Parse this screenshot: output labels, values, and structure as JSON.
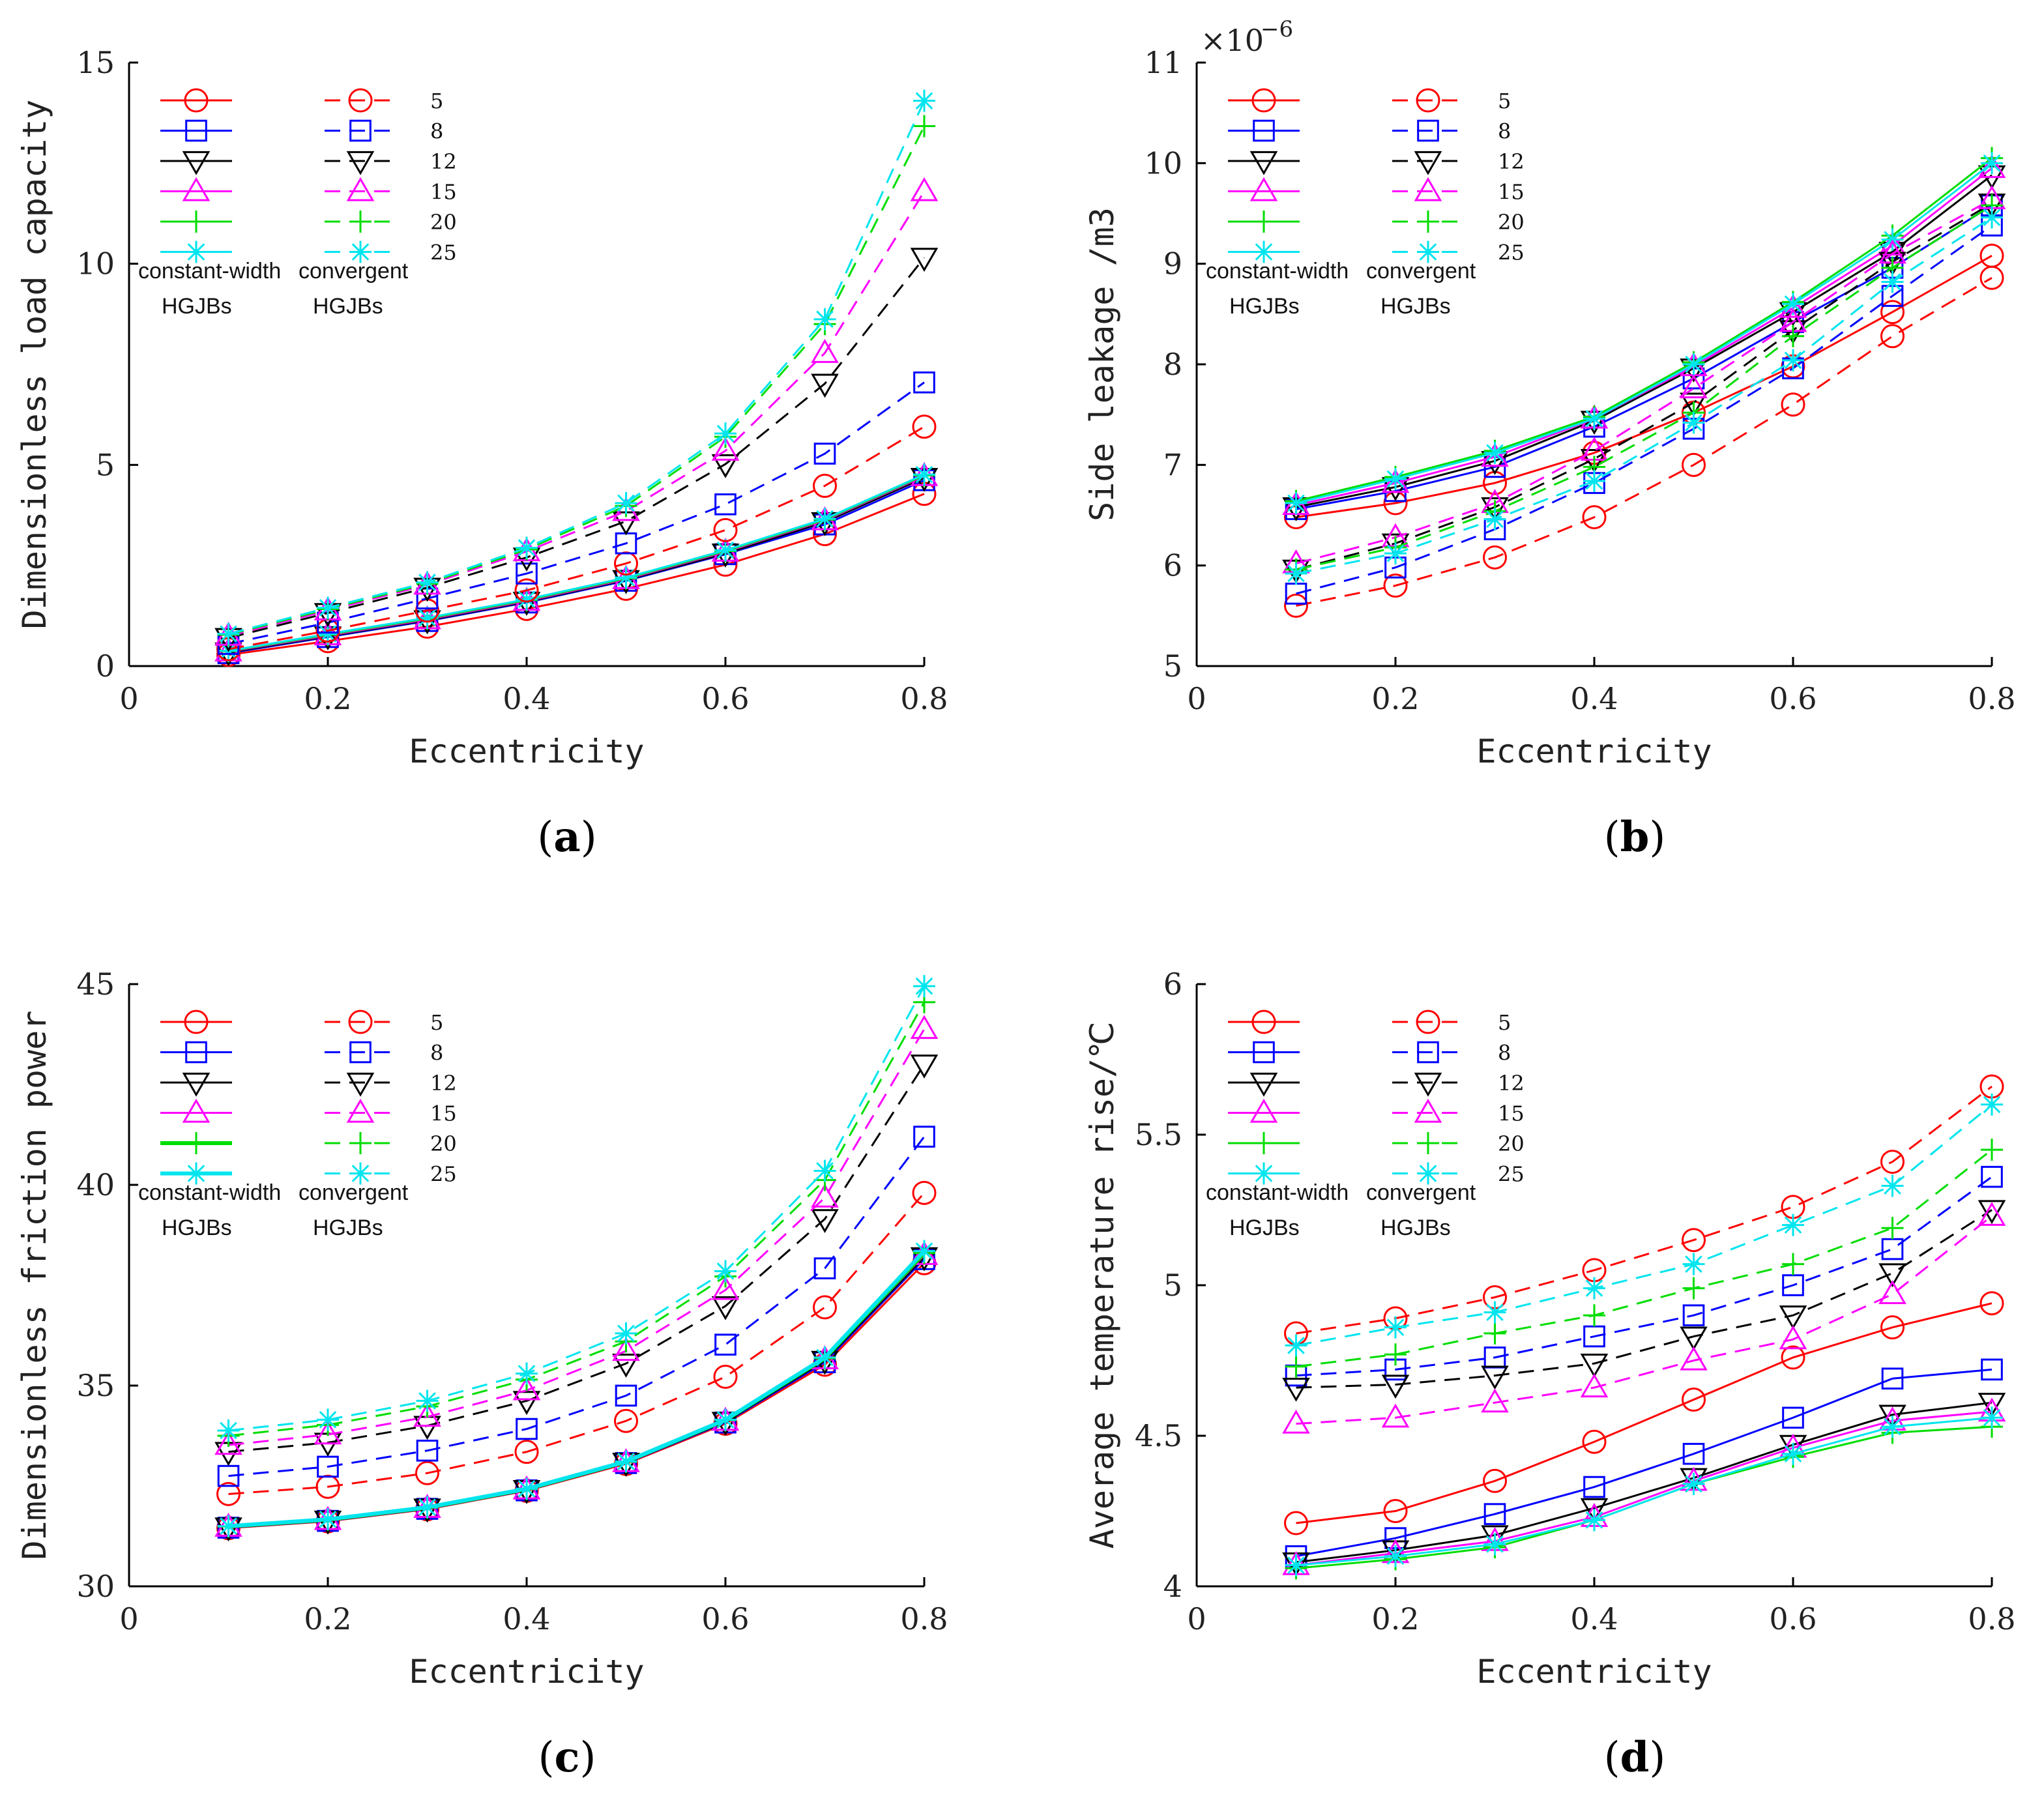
{
  "series_colors": {
    "5": "#ff0000",
    "8": "#0000ff",
    "12": "#000000",
    "15": "#ff00ff",
    "20": "#00dd00",
    "25": "#00e5ee"
  },
  "series_markers": {
    "5": "circle",
    "8": "square",
    "12": "triangle-down",
    "15": "triangle-up",
    "20": "plus",
    "25": "asterisk"
  },
  "legend": {
    "labels": [
      "5",
      "8",
      "12",
      "15",
      "20",
      "25"
    ],
    "solid_label_line1": "constant-width",
    "solid_label_line2": "HGJBs",
    "dashed_label_line1": "convergent",
    "dashed_label_line2": "HGJBs"
  },
  "panels": [
    {
      "letter": "a",
      "paren_open": "(",
      "paren_close": ")"
    },
    {
      "letter": "b",
      "paren_open": "(",
      "paren_close": ")"
    },
    {
      "letter": "c",
      "paren_open": "(",
      "paren_close": ")"
    },
    {
      "letter": "d",
      "paren_open": "(",
      "paren_close": ")"
    }
  ],
  "chart_data": [
    {
      "type": "line",
      "xlabel": "Eccentricity",
      "ylabel": "Dimensionless load capacity",
      "xlim": [
        0,
        0.8
      ],
      "ylim": [
        0,
        15
      ],
      "xticks": [
        0,
        0.2,
        0.4,
        0.6,
        0.8
      ],
      "xtick_labels": [
        "0",
        "0.2",
        "0.4",
        "0.6",
        "0.8"
      ],
      "yticks": [
        0,
        5,
        10,
        15
      ],
      "ytick_labels": [
        "0",
        "5",
        "10",
        "15"
      ],
      "x": [
        0.1,
        0.2,
        0.3,
        0.4,
        0.5,
        0.6,
        0.7,
        0.8
      ],
      "series": [
        {
          "name": "5",
          "style": "solid",
          "values": [
            0.28,
            0.62,
            0.98,
            1.42,
            1.92,
            2.52,
            3.28,
            4.28
          ]
        },
        {
          "name": "8",
          "style": "solid",
          "values": [
            0.32,
            0.72,
            1.12,
            1.58,
            2.12,
            2.78,
            3.52,
            4.62
          ]
        },
        {
          "name": "12",
          "style": "solid",
          "values": [
            0.34,
            0.74,
            1.14,
            1.6,
            2.14,
            2.8,
            3.58,
            4.68
          ]
        },
        {
          "name": "15",
          "style": "solid",
          "values": [
            0.36,
            0.76,
            1.16,
            1.62,
            2.16,
            2.84,
            3.62,
            4.72
          ]
        },
        {
          "name": "20",
          "style": "solid",
          "values": [
            0.37,
            0.78,
            1.18,
            1.64,
            2.18,
            2.86,
            3.64,
            4.74
          ]
        },
        {
          "name": "25",
          "style": "solid",
          "values": [
            0.38,
            0.8,
            1.2,
            1.66,
            2.2,
            2.88,
            3.66,
            4.76
          ]
        },
        {
          "name": "5",
          "style": "dashed",
          "values": [
            0.42,
            0.88,
            1.38,
            1.88,
            2.55,
            3.38,
            4.48,
            5.95
          ]
        },
        {
          "name": "8",
          "style": "dashed",
          "values": [
            0.55,
            1.08,
            1.68,
            2.3,
            3.05,
            4.02,
            5.28,
            7.05
          ]
        },
        {
          "name": "12",
          "style": "dashed",
          "values": [
            0.7,
            1.32,
            1.95,
            2.7,
            3.6,
            5.02,
            7.02,
            10.15
          ]
        },
        {
          "name": "15",
          "style": "dashed",
          "values": [
            0.75,
            1.38,
            2.02,
            2.85,
            3.85,
            5.35,
            7.78,
            11.8
          ]
        },
        {
          "name": "20",
          "style": "dashed",
          "values": [
            0.78,
            1.42,
            2.05,
            2.9,
            3.98,
            5.7,
            8.5,
            13.42
          ]
        },
        {
          "name": "25",
          "style": "dashed",
          "values": [
            0.8,
            1.45,
            2.08,
            2.94,
            4.05,
            5.78,
            8.62,
            14.05
          ]
        }
      ]
    },
    {
      "type": "line",
      "xlabel": "Eccentricity",
      "ylabel": "Side leakage /m3",
      "axis_multiplier": "×10",
      "axis_multiplier_exp": "−6",
      "xlim": [
        0,
        0.8
      ],
      "ylim": [
        5,
        11
      ],
      "xticks": [
        0,
        0.2,
        0.4,
        0.6,
        0.8
      ],
      "xtick_labels": [
        "0",
        "0.2",
        "0.4",
        "0.6",
        "0.8"
      ],
      "yticks": [
        5,
        6,
        7,
        8,
        9,
        10,
        11
      ],
      "ytick_labels": [
        "5",
        "6",
        "7",
        "8",
        "9",
        "10",
        "11"
      ],
      "x": [
        0.1,
        0.2,
        0.3,
        0.4,
        0.5,
        0.6,
        0.7,
        0.8
      ],
      "series": [
        {
          "name": "5",
          "style": "solid",
          "values": [
            6.48,
            6.62,
            6.82,
            7.12,
            7.52,
            7.98,
            8.52,
            9.08
          ]
        },
        {
          "name": "8",
          "style": "solid",
          "values": [
            6.56,
            6.74,
            6.98,
            7.38,
            7.86,
            8.42,
            8.96,
            9.58
          ]
        },
        {
          "name": "12",
          "style": "solid",
          "values": [
            6.58,
            6.78,
            7.04,
            7.44,
            7.96,
            8.52,
            9.12,
            9.88
          ]
        },
        {
          "name": "15",
          "style": "solid",
          "values": [
            6.6,
            6.82,
            7.08,
            7.46,
            7.98,
            8.56,
            9.18,
            9.95
          ]
        },
        {
          "name": "20",
          "style": "solid",
          "values": [
            6.64,
            6.88,
            7.14,
            7.48,
            8.02,
            8.62,
            9.28,
            10.05
          ]
        },
        {
          "name": "25",
          "style": "solid",
          "values": [
            6.62,
            6.86,
            7.12,
            7.46,
            8.0,
            8.6,
            9.24,
            10.0
          ]
        },
        {
          "name": "5",
          "style": "dashed",
          "values": [
            5.6,
            5.8,
            6.08,
            6.48,
            7.0,
            7.6,
            8.28,
            8.86
          ]
        },
        {
          "name": "8",
          "style": "dashed",
          "values": [
            5.72,
            5.98,
            6.36,
            6.82,
            7.36,
            7.96,
            8.68,
            9.38
          ]
        },
        {
          "name": "12",
          "style": "dashed",
          "values": [
            5.96,
            6.22,
            6.58,
            7.06,
            7.62,
            8.34,
            9.02,
            9.6
          ]
        },
        {
          "name": "15",
          "style": "dashed",
          "values": [
            6.02,
            6.28,
            6.62,
            7.14,
            7.76,
            8.42,
            9.1,
            9.64
          ]
        },
        {
          "name": "20",
          "style": "dashed",
          "values": [
            5.96,
            6.18,
            6.54,
            6.98,
            7.52,
            8.28,
            8.96,
            9.58
          ]
        },
        {
          "name": "25",
          "style": "dashed",
          "values": [
            5.92,
            6.12,
            6.46,
            6.84,
            7.42,
            8.04,
            8.82,
            9.46
          ]
        }
      ]
    },
    {
      "type": "line",
      "xlabel": "Eccentricity",
      "ylabel": "Dimensionless friction power",
      "xlim": [
        0,
        0.8
      ],
      "ylim": [
        30,
        45
      ],
      "xticks": [
        0,
        0.2,
        0.4,
        0.6,
        0.8
      ],
      "xtick_labels": [
        "0",
        "0.2",
        "0.4",
        "0.6",
        "0.8"
      ],
      "yticks": [
        30,
        35,
        40,
        45
      ],
      "ytick_labels": [
        "30",
        "35",
        "40",
        "45"
      ],
      "x": [
        0.1,
        0.2,
        0.3,
        0.4,
        0.5,
        0.6,
        0.7,
        0.8
      ],
      "series": [
        {
          "name": "5",
          "style": "solid",
          "values": [
            31.45,
            31.62,
            31.92,
            32.38,
            33.05,
            34.05,
            35.52,
            38.05
          ]
        },
        {
          "name": "8",
          "style": "solid",
          "values": [
            31.46,
            31.63,
            31.93,
            32.39,
            33.07,
            34.08,
            35.58,
            38.15
          ]
        },
        {
          "name": "12",
          "style": "solid",
          "values": [
            31.47,
            31.64,
            31.94,
            32.4,
            33.08,
            34.1,
            35.62,
            38.2
          ]
        },
        {
          "name": "15",
          "style": "solid",
          "values": [
            31.48,
            31.65,
            31.95,
            32.41,
            33.09,
            34.12,
            35.65,
            38.25
          ]
        },
        {
          "name": "20",
          "style": "solid",
          "values": [
            31.49,
            31.66,
            31.96,
            32.42,
            33.1,
            34.14,
            35.68,
            38.3
          ]
        },
        {
          "name": "25",
          "style": "solid",
          "values": [
            31.5,
            31.67,
            31.97,
            32.43,
            33.11,
            34.15,
            35.7,
            38.35
          ]
        },
        {
          "name": "5",
          "style": "dashed",
          "values": [
            32.3,
            32.48,
            32.82,
            33.35,
            34.12,
            35.22,
            36.95,
            39.8
          ]
        },
        {
          "name": "8",
          "style": "dashed",
          "values": [
            32.75,
            32.98,
            33.38,
            33.92,
            34.75,
            36.02,
            37.92,
            41.2
          ]
        },
        {
          "name": "12",
          "style": "dashed",
          "values": [
            33.35,
            33.58,
            34.0,
            34.62,
            35.55,
            36.98,
            39.15,
            43.0
          ]
        },
        {
          "name": "15",
          "style": "dashed",
          "values": [
            33.52,
            33.78,
            34.22,
            34.88,
            35.86,
            37.38,
            39.68,
            43.88
          ]
        },
        {
          "name": "20",
          "style": "dashed",
          "values": [
            33.75,
            34.02,
            34.48,
            35.15,
            36.1,
            37.72,
            40.12,
            44.55
          ]
        },
        {
          "name": "25",
          "style": "dashed",
          "values": [
            33.88,
            34.15,
            34.62,
            35.3,
            36.3,
            37.85,
            40.35,
            44.95
          ]
        }
      ]
    },
    {
      "type": "line",
      "xlabel": "Eccentricity",
      "ylabel": "Average temperature rise/℃",
      "xlim": [
        0,
        0.8
      ],
      "ylim": [
        4,
        6
      ],
      "xticks": [
        0,
        0.2,
        0.4,
        0.6,
        0.8
      ],
      "xtick_labels": [
        "0",
        "0.2",
        "0.4",
        "0.6",
        "0.8"
      ],
      "yticks": [
        4,
        4.5,
        5,
        5.5,
        6
      ],
      "ytick_labels": [
        "4",
        "4.5",
        "5",
        "5.5",
        "6"
      ],
      "x": [
        0.1,
        0.2,
        0.3,
        0.4,
        0.5,
        0.6,
        0.7,
        0.8
      ],
      "series": [
        {
          "name": "5",
          "style": "solid",
          "values": [
            4.21,
            4.25,
            4.35,
            4.48,
            4.62,
            4.76,
            4.86,
            4.94
          ]
        },
        {
          "name": "8",
          "style": "solid",
          "values": [
            4.1,
            4.16,
            4.24,
            4.33,
            4.44,
            4.56,
            4.69,
            4.72
          ]
        },
        {
          "name": "12",
          "style": "solid",
          "values": [
            4.08,
            4.12,
            4.17,
            4.26,
            4.36,
            4.47,
            4.57,
            4.61
          ]
        },
        {
          "name": "15",
          "style": "solid",
          "values": [
            4.07,
            4.11,
            4.15,
            4.23,
            4.35,
            4.46,
            4.55,
            4.58
          ]
        },
        {
          "name": "20",
          "style": "solid",
          "values": [
            4.06,
            4.09,
            4.13,
            4.22,
            4.34,
            4.43,
            4.51,
            4.53
          ]
        },
        {
          "name": "25",
          "style": "solid",
          "values": [
            4.07,
            4.1,
            4.14,
            4.22,
            4.34,
            4.44,
            4.53,
            4.56
          ]
        },
        {
          "name": "5",
          "style": "dashed",
          "values": [
            4.84,
            4.89,
            4.96,
            5.05,
            5.15,
            5.26,
            5.41,
            5.66
          ]
        },
        {
          "name": "8",
          "style": "dashed",
          "values": [
            4.7,
            4.72,
            4.76,
            4.83,
            4.9,
            5.0,
            5.12,
            5.36
          ]
        },
        {
          "name": "12",
          "style": "dashed",
          "values": [
            4.66,
            4.67,
            4.7,
            4.74,
            4.83,
            4.9,
            5.04,
            5.25
          ]
        },
        {
          "name": "15",
          "style": "dashed",
          "values": [
            4.54,
            4.56,
            4.61,
            4.66,
            4.75,
            4.82,
            4.97,
            5.23
          ]
        },
        {
          "name": "20",
          "style": "dashed",
          "values": [
            4.73,
            4.77,
            4.84,
            4.9,
            4.99,
            5.07,
            5.19,
            5.45
          ]
        },
        {
          "name": "25",
          "style": "dashed",
          "values": [
            4.8,
            4.86,
            4.91,
            4.99,
            5.07,
            5.2,
            5.33,
            5.6
          ]
        }
      ]
    }
  ]
}
